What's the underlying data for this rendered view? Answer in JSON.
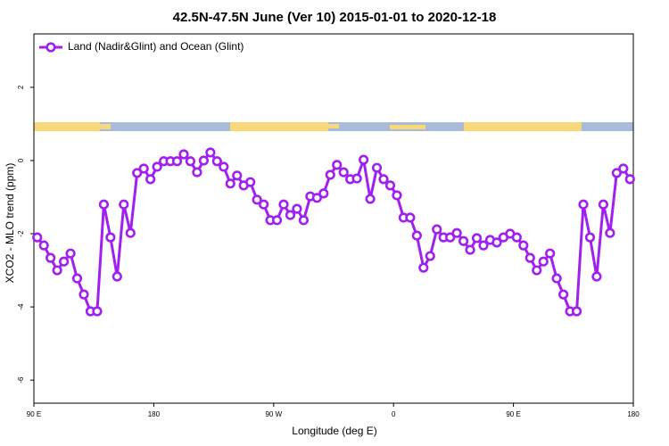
{
  "chart_data": {
    "type": "line",
    "title": "42.5N-47.5N June (Ver 10)   2015-01-01 to 2020-12-18",
    "x_label": "Longitude (deg E)",
    "y_label": "XCO2 - MLO trend (ppm)",
    "legend": "top-left",
    "x": [
      92.5,
      97.5,
      102.5,
      107.5,
      112.5,
      117.5,
      122.5,
      127.5,
      132.5,
      137.5,
      142.5,
      147.5,
      152.5,
      157.5,
      162.5,
      167.5,
      172.5,
      177.5,
      182.5,
      187.5,
      192.5,
      197.5,
      202.5,
      207.5,
      212.5,
      217.5,
      222.5,
      227.5,
      232.5,
      237.5,
      242.5,
      247.5,
      252.5,
      257.5,
      262.5,
      267.5,
      272.5,
      277.5,
      282.5,
      287.5,
      292.5,
      297.5,
      302.5,
      307.5,
      312.5,
      317.5,
      322.5,
      327.5,
      332.5,
      337.5,
      342.5,
      347.5,
      352.5,
      357.5,
      362.5,
      367.5,
      372.5,
      377.5,
      382.5,
      387.5,
      392.5,
      397.5,
      402.5,
      407.5,
      412.5,
      417.5,
      422.5,
      427.5,
      432.5,
      437.5,
      442.5,
      447.5,
      452.5,
      457.5,
      462.5,
      467.5,
      472.5,
      477.5,
      482.5,
      487.5,
      492.5,
      497.5,
      502.5,
      507.5,
      512.5,
      517.5,
      522.5,
      527.5,
      532.5,
      537.5
    ],
    "series": [
      {
        "name": "Land (Nadir&Glint) and Ocean (Glint)",
        "color": "#a020f0",
        "values": [
          -2.1,
          -2.32,
          -2.66,
          -3.0,
          -2.76,
          -2.54,
          -3.22,
          -3.66,
          -4.12,
          -4.12,
          -1.2,
          -2.1,
          -3.17,
          -1.2,
          -1.98,
          -0.34,
          -0.22,
          -0.51,
          -0.17,
          -0.02,
          -0.02,
          -0.02,
          0.17,
          -0.02,
          -0.32,
          0,
          0.22,
          -0.02,
          -0.17,
          -0.63,
          -0.41,
          -0.68,
          -0.59,
          -1.07,
          -1.2,
          -1.63,
          -1.63,
          -1.2,
          -1.49,
          -1.32,
          -1.63,
          -0.98,
          -1.02,
          -0.9,
          -0.39,
          -0.12,
          -0.32,
          -0.51,
          -0.49,
          0.02,
          -1.05,
          -0.2,
          -0.51,
          -0.68,
          -0.95,
          -1.56,
          -1.56,
          -2.05,
          -2.93,
          -2.61,
          -1.88,
          -2.1,
          -2.1,
          -1.98,
          -2.2,
          -2.44,
          -2.12,
          -2.32,
          -2.17,
          -2.24,
          -2.1,
          -2.0,
          -2.1,
          -2.32,
          -2.66,
          -3.0,
          -2.76,
          -2.54,
          -3.22,
          -3.66,
          -4.12,
          -4.12,
          -1.2,
          -2.1,
          -3.17,
          -1.2,
          -1.98,
          -0.34,
          -0.22,
          -0.51
        ]
      }
    ],
    "xlim": [
      90,
      540
    ],
    "xticks": [
      {
        "value": 90,
        "label": "90 E"
      },
      180,
      {
        "value": 270,
        "label": "90 W"
      },
      {
        "value": 360,
        "label": "0"
      },
      {
        "value": 450,
        "label": "90 E"
      },
      {
        "value": 540,
        "label": "180"
      }
    ],
    "ylim": [
      -6.63,
      3.46
    ],
    "yticks": [
      -6,
      -4,
      -2,
      0,
      2
    ]
  }
}
